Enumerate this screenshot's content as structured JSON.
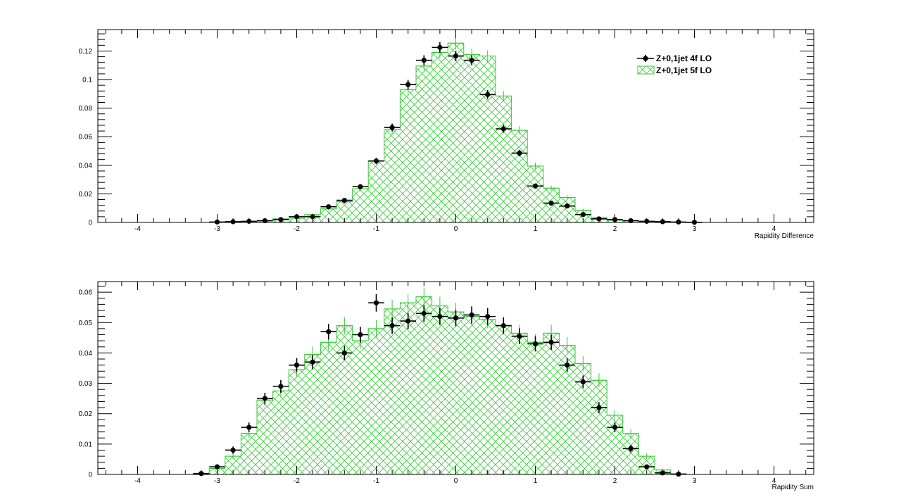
{
  "chart_data": [
    {
      "type": "histogram",
      "xlabel": "Rapidity Difference",
      "ylabel": "",
      "xlim": [
        -4.5,
        4.5
      ],
      "ylim": [
        0,
        0.135
      ],
      "xticks": [
        -4,
        -3,
        -2,
        -1,
        0,
        1,
        2,
        3,
        4
      ],
      "yticks": [
        0,
        0.02,
        0.04,
        0.06,
        0.08,
        0.1,
        0.12
      ],
      "ytick_labels": [
        "0",
        "0.02",
        "0.04",
        "0.06",
        "0.08",
        "0.1",
        "0.12"
      ],
      "bin_width": 0.2,
      "series": [
        {
          "name": "Z+0,1jet 4f LO",
          "style": "points",
          "color": "#000000",
          "x": [
            -3.0,
            -2.8,
            -2.6,
            -2.4,
            -2.2,
            -2.0,
            -1.8,
            -1.6,
            -1.4,
            -1.2,
            -1.0,
            -0.8,
            -0.6,
            -0.4,
            -0.2,
            0.0,
            0.2,
            0.4,
            0.6,
            0.8,
            1.0,
            1.2,
            1.4,
            1.6,
            1.8,
            2.0,
            2.2,
            2.4,
            2.6,
            2.8,
            3.0
          ],
          "values": [
            0.0003,
            0.0005,
            0.0008,
            0.0012,
            0.002,
            0.004,
            0.004,
            0.011,
            0.0155,
            0.025,
            0.043,
            0.0665,
            0.0965,
            0.1135,
            0.1225,
            0.1165,
            0.1135,
            0.0895,
            0.0655,
            0.0485,
            0.0255,
            0.0135,
            0.0115,
            0.0055,
            0.0025,
            0.002,
            0.0012,
            0.0008,
            0.0005,
            0.0003,
            0.0001
          ],
          "errors": [
            0.0002,
            0.0002,
            0.0003,
            0.0003,
            0.0005,
            0.0008,
            0.0008,
            0.0012,
            0.0015,
            0.0018,
            0.0022,
            0.0027,
            0.0033,
            0.0035,
            0.0037,
            0.0036,
            0.0035,
            0.0031,
            0.0027,
            0.0023,
            0.0017,
            0.0013,
            0.0012,
            0.0008,
            0.0005,
            0.0005,
            0.0004,
            0.0003,
            0.0002,
            0.0002,
            0.0001
          ]
        },
        {
          "name": "Z+0,1jet 5f LO",
          "style": "hatched-histogram",
          "color": "#33cc33",
          "x": [
            -3.0,
            -2.8,
            -2.6,
            -2.4,
            -2.2,
            -2.0,
            -1.8,
            -1.6,
            -1.4,
            -1.2,
            -1.0,
            -0.8,
            -0.6,
            -0.4,
            -0.2,
            0.0,
            0.2,
            0.4,
            0.6,
            0.8,
            1.0,
            1.2,
            1.4,
            1.6,
            1.8,
            2.0,
            2.2,
            2.4,
            2.6,
            2.8,
            3.0
          ],
          "values": [
            0.0002,
            0.0004,
            0.0007,
            0.0012,
            0.0025,
            0.003,
            0.0055,
            0.0095,
            0.0145,
            0.0235,
            0.043,
            0.065,
            0.093,
            0.1095,
            0.119,
            0.1255,
            0.1175,
            0.1165,
            0.0885,
            0.0645,
            0.0395,
            0.024,
            0.0175,
            0.0085,
            0.0035,
            0.0015,
            0.0012,
            0.0008,
            0.0005,
            0.0002,
            0.0001
          ],
          "errors": [
            0.0002,
            0.0002,
            0.0003,
            0.0004,
            0.0006,
            0.0007,
            0.0009,
            0.0012,
            0.0015,
            0.0018,
            0.0024,
            0.003,
            0.0035,
            0.0038,
            0.0041,
            0.0042,
            0.004,
            0.004,
            0.0035,
            0.003,
            0.0024,
            0.0018,
            0.0016,
            0.0011,
            0.0007,
            0.0005,
            0.0004,
            0.0003,
            0.0002,
            0.0002,
            0.0001
          ]
        }
      ],
      "legend": {
        "placement": "top-right",
        "entries": [
          "Z+0,1jet 4f LO",
          "Z+0,1jet 5f LO"
        ]
      }
    },
    {
      "type": "histogram",
      "xlabel": "Rapidity Sum",
      "ylabel": "",
      "xlim": [
        -4.5,
        4.5
      ],
      "ylim": [
        0,
        0.0635
      ],
      "xticks": [
        -4,
        -3,
        -2,
        -1,
        0,
        1,
        2,
        3,
        4
      ],
      "yticks": [
        0,
        0.01,
        0.02,
        0.03,
        0.04,
        0.05,
        0.06
      ],
      "ytick_labels": [
        "0",
        "0.01",
        "0.02",
        "0.03",
        "0.04",
        "0.05",
        "0.06"
      ],
      "bin_width": 0.2,
      "series": [
        {
          "name": "Z+0,1jet 4f LO",
          "style": "points",
          "color": "#000000",
          "x": [
            -3.2,
            -3.0,
            -2.8,
            -2.6,
            -2.4,
            -2.2,
            -2.0,
            -1.8,
            -1.6,
            -1.4,
            -1.2,
            -1.0,
            -0.8,
            -0.6,
            -0.4,
            -0.2,
            0.0,
            0.2,
            0.4,
            0.6,
            0.8,
            1.0,
            1.2,
            1.4,
            1.6,
            1.8,
            2.0,
            2.2,
            2.4,
            2.6,
            2.8,
            3.0,
            3.2
          ],
          "values": [
            0.0003,
            0.0025,
            0.008,
            0.0155,
            0.025,
            0.029,
            0.036,
            0.037,
            0.047,
            0.04,
            0.046,
            0.0565,
            0.049,
            0.0505,
            0.053,
            0.052,
            0.0515,
            0.0525,
            0.052,
            0.049,
            0.0455,
            0.043,
            0.0435,
            0.036,
            0.0305,
            0.022,
            0.0155,
            0.0085,
            0.0025,
            0.0005,
            0.0001,
            0.0,
            0.0
          ],
          "errors": [
            0.0003,
            0.0008,
            0.0012,
            0.0016,
            0.0019,
            0.0021,
            0.0023,
            0.0024,
            0.0026,
            0.0024,
            0.0026,
            0.0029,
            0.0027,
            0.0027,
            0.0028,
            0.0028,
            0.0027,
            0.0028,
            0.0028,
            0.0027,
            0.0026,
            0.0025,
            0.0025,
            0.0023,
            0.0021,
            0.0018,
            0.0016,
            0.0012,
            0.0007,
            0.0003,
            0.0001,
            0.0,
            0.0
          ]
        },
        {
          "name": "Z+0,1jet 5f LO",
          "style": "hatched-histogram",
          "color": "#33cc33",
          "x": [
            -3.2,
            -3.0,
            -2.8,
            -2.6,
            -2.4,
            -2.2,
            -2.0,
            -1.8,
            -1.6,
            -1.4,
            -1.2,
            -1.0,
            -0.8,
            -0.6,
            -0.4,
            -0.2,
            0.0,
            0.2,
            0.4,
            0.6,
            0.8,
            1.0,
            1.2,
            1.4,
            1.6,
            1.8,
            2.0,
            2.2,
            2.4,
            2.6,
            2.8,
            3.0,
            3.2
          ],
          "values": [
            0.0002,
            0.002,
            0.006,
            0.0135,
            0.0245,
            0.0275,
            0.0345,
            0.0395,
            0.0435,
            0.049,
            0.044,
            0.048,
            0.0545,
            0.0565,
            0.0585,
            0.0555,
            0.0535,
            0.052,
            0.051,
            0.049,
            0.0465,
            0.0435,
            0.0465,
            0.0425,
            0.0365,
            0.031,
            0.0195,
            0.0135,
            0.006,
            0.0015,
            0.0002,
            0.0,
            0.0
          ],
          "errors": [
            0.0002,
            0.0006,
            0.001,
            0.0015,
            0.002,
            0.0022,
            0.0024,
            0.0026,
            0.0027,
            0.0029,
            0.0027,
            0.0028,
            0.003,
            0.003,
            0.0031,
            0.003,
            0.003,
            0.0029,
            0.0029,
            0.0029,
            0.0028,
            0.0027,
            0.0028,
            0.0027,
            0.0025,
            0.0023,
            0.0018,
            0.0015,
            0.001,
            0.0005,
            0.0002,
            0.0,
            0.0
          ]
        }
      ]
    }
  ]
}
